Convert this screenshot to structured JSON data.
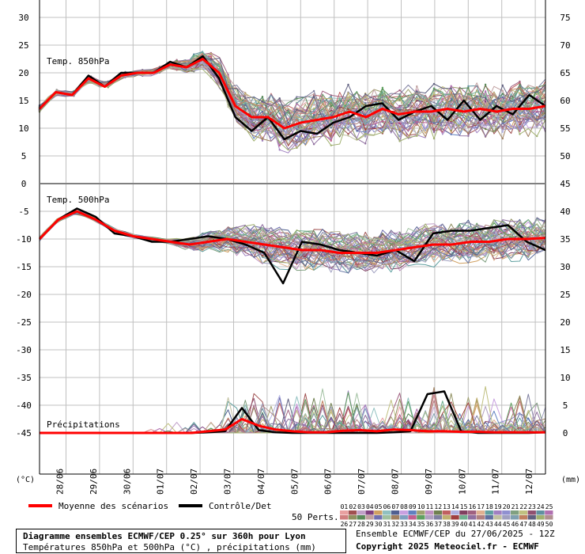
{
  "chart_data": {
    "type": "line",
    "panels": [
      {
        "label": "Temp. 850hPa",
        "left_ticks": [
          "30",
          "25",
          "20",
          "15",
          "10",
          "5",
          "0"
        ],
        "right_ticks": [
          "75",
          "70",
          "65",
          "60",
          "55",
          "50"
        ]
      },
      {
        "label": "Temp. 500hPa",
        "left_ticks": [
          "-5",
          "-10",
          "-15",
          "-20",
          "-25",
          "-30",
          "-35",
          "-40",
          "-45"
        ],
        "right_ticks": [
          "45",
          "40",
          "35",
          "30",
          "25",
          "20",
          "15",
          "10",
          "5",
          "0"
        ]
      },
      {
        "label": "Précipitations"
      }
    ],
    "left_unit": "(°C)",
    "right_unit": "(mm)",
    "x_labels": [
      "28/06",
      "29/06",
      "30/06",
      "01/07",
      "02/07",
      "03/07",
      "04/07",
      "05/07",
      "06/07",
      "07/07",
      "08/07",
      "09/07",
      "10/07",
      "11/07",
      "12/07"
    ],
    "t850": {
      "mean": [
        13.5,
        16.5,
        16,
        19,
        17.5,
        19.5,
        20,
        20,
        21.5,
        21,
        22.5,
        20,
        14,
        12,
        12,
        10,
        11,
        11.5,
        12,
        13,
        12,
        13.5,
        12.5,
        13,
        13,
        13.5,
        13,
        13.5,
        13,
        13.5,
        13.5,
        14
      ],
      "control": [
        13.5,
        16.5,
        16,
        19.5,
        17.5,
        20,
        20,
        20,
        22,
        21,
        23,
        19,
        12,
        9.5,
        12,
        8,
        9.5,
        9,
        11,
        12,
        14,
        14.5,
        11.5,
        13,
        14,
        11.5,
        15,
        11.5,
        14,
        12.5,
        16,
        14
      ]
    },
    "t500": {
      "mean": [
        -10,
        -6.5,
        -5,
        -6.5,
        -8.5,
        -9.5,
        -10,
        -10.5,
        -11,
        -10.5,
        -10,
        -10.5,
        -11,
        -11.5,
        -12,
        -12,
        -12.5,
        -12.5,
        -12.5,
        -12,
        -11.5,
        -11,
        -11,
        -10.5,
        -10.5,
        -10,
        -10,
        -9.8
      ],
      "control": [
        -10,
        -6.5,
        -4.5,
        -6,
        -9,
        -9.5,
        -10.5,
        -10.5,
        -10,
        -9.5,
        -10,
        -11,
        -12.5,
        -18,
        -10.5,
        -11,
        -12,
        -12.5,
        -13,
        -12,
        -14,
        -9,
        -8.5,
        -8.5,
        -8,
        -7.5,
        -10.5,
        -12
      ]
    },
    "precip": {
      "mean": [
        0,
        0,
        0,
        0,
        0,
        0,
        0,
        0,
        0,
        0,
        0.3,
        0.6,
        2.5,
        1.3,
        0.6,
        0.3,
        0.1,
        0.1,
        0.4,
        0.5,
        0.3,
        0.6,
        0.5,
        0.3,
        0.3,
        0.2,
        0.2,
        0.1,
        0.1,
        0.1,
        0.1
      ],
      "control": [
        0,
        0,
        0,
        0,
        0,
        0,
        0,
        0,
        0,
        0,
        0.1,
        0.3,
        4.5,
        0.5,
        0.1,
        0,
        0,
        0,
        0,
        0,
        0,
        0.1,
        0.3,
        7,
        7.5,
        0.3,
        0,
        0,
        0,
        0,
        0.1
      ]
    },
    "member_count": 50
  },
  "legend": {
    "mean_label": "Moyenne des scénarios",
    "control_label": "Contrôle/Det",
    "perts_label": "50 Perts.",
    "member_numbers_top": [
      "01",
      "02",
      "03",
      "04",
      "05",
      "06",
      "07",
      "08",
      "09",
      "10",
      "11",
      "12",
      "13",
      "14",
      "15",
      "16",
      "17",
      "18",
      "19",
      "20",
      "21",
      "22",
      "23",
      "24",
      "25"
    ],
    "member_numbers_bottom": [
      "26",
      "27",
      "28",
      "29",
      "30",
      "31",
      "32",
      "33",
      "34",
      "35",
      "36",
      "37",
      "38",
      "39",
      "40",
      "41",
      "42",
      "43",
      "44",
      "45",
      "46",
      "47",
      "48",
      "49",
      "50"
    ],
    "member_colors": [
      "#e8a0a0",
      "#a05050",
      "#c0a0c8",
      "#804080",
      "#d0a060",
      "#90c0c0",
      "#506090",
      "#c8a0e0",
      "#6080c0",
      "#a0a070",
      "#c090c0",
      "#708050",
      "#c06060",
      "#b0b0e0",
      "#804060",
      "#a06080",
      "#e0b090",
      "#60a0a0",
      "#a080c0",
      "#9090d0",
      "#80a080",
      "#c0c080",
      "#905070",
      "#6090a0",
      "#b070b0",
      "#d08080",
      "#909060",
      "#5a8a5a",
      "#c0a0a0",
      "#7070b0",
      "#a0c0a0",
      "#a08060",
      "#7fa0c0",
      "#c06090",
      "#60a060",
      "#b0a0c0",
      "#8080a0",
      "#c0b070",
      "#a04040",
      "#70b090",
      "#9070a0",
      "#b08080",
      "#6070a0",
      "#c0c0a0",
      "#a0a0c0",
      "#80a0b0",
      "#c08060",
      "#606080",
      "#a0b070",
      "#b09090"
    ]
  },
  "info": {
    "title": "Diagramme ensembles ECMWF/CEP 0.25° sur 360h pour Lyon",
    "subtitle": "Températures 850hPa et 500hPa (°C) , précipitations (mm)"
  },
  "credits": {
    "line1": "Ensemble ECMWF/CEP du 27/06/2025 - 12Z",
    "line2": "Copyright 2025 Meteociel.fr - ECMWF"
  }
}
